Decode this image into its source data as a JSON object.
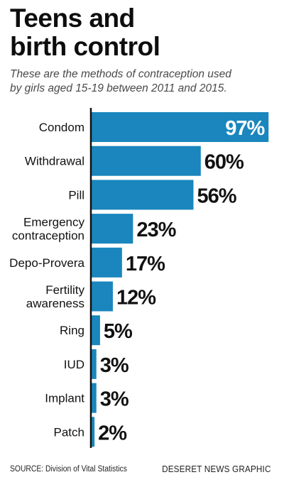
{
  "title": "Teens and\nbirth control",
  "subtitle": "These are the methods of contraception used\nby girls aged 15-19 between 2011 and 2015.",
  "source": "SOURCE: Division of Vital Statistics",
  "credit": "DESERET NEWS GRAPHIC",
  "colors": {
    "bar": "#1a86bd",
    "axis": "#111111",
    "inside_label": "#ffffff",
    "outside_label": "#111111"
  },
  "chart_data": {
    "type": "bar",
    "orientation": "horizontal",
    "categories": [
      "Condom",
      "Withdrawal",
      "Pill",
      "Emergency\ncontraception",
      "Depo-Provera",
      "Fertility\nawareness",
      "Ring",
      "IUD",
      "Implant",
      "Patch"
    ],
    "values": [
      97,
      60,
      56,
      23,
      17,
      12,
      5,
      3,
      3,
      2
    ],
    "data_labels": [
      "97%",
      "60%",
      "56%",
      "23%",
      "17%",
      "12%",
      "5%",
      "3%",
      "3%",
      "2%"
    ],
    "unit": "%",
    "xlim": [
      0,
      100
    ]
  }
}
